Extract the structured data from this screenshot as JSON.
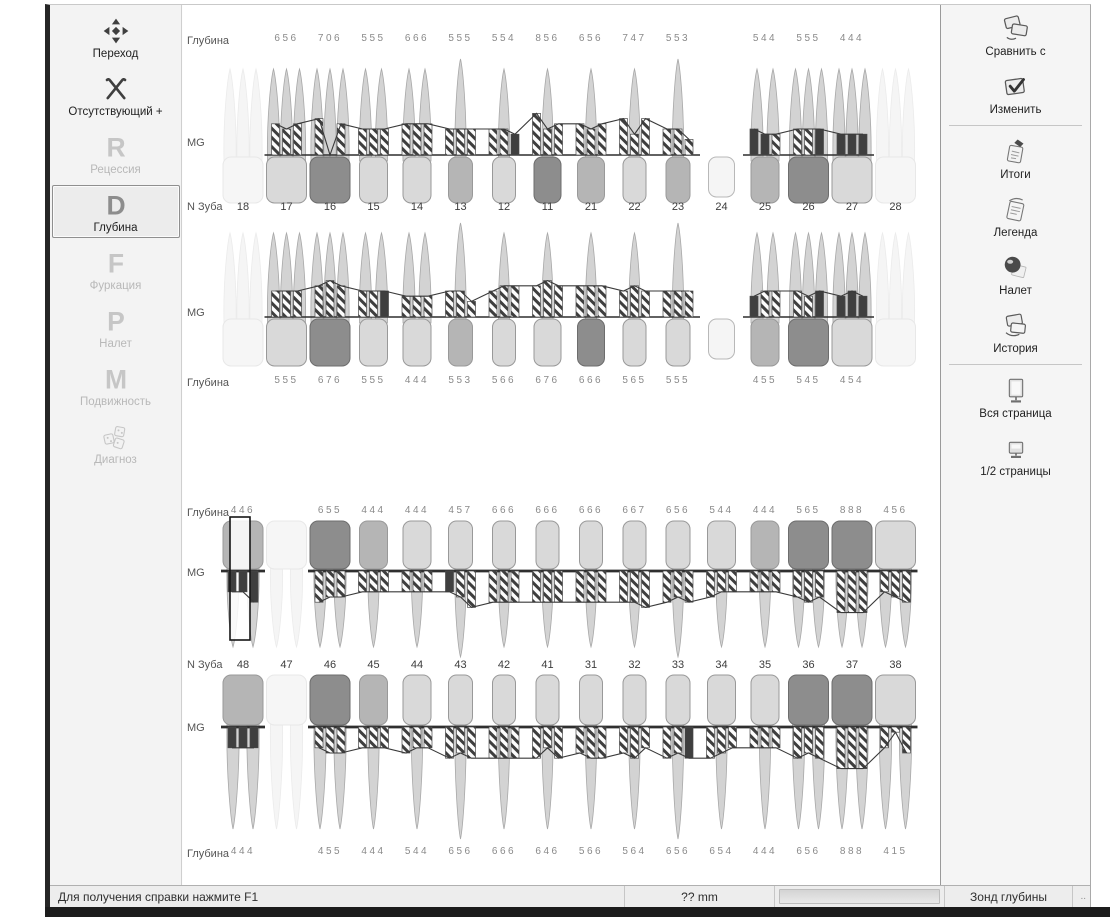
{
  "left_toolbar": {
    "items": [
      {
        "id": "transition",
        "label": "Переход",
        "icon": "move",
        "state": "normal"
      },
      {
        "id": "missing",
        "label": "Отсутствующий +",
        "icon": "x-mark",
        "state": "normal"
      },
      {
        "id": "recession",
        "label": "Рецессия",
        "icon": "letter-R",
        "state": "disabled"
      },
      {
        "id": "depth",
        "label": "Глубина",
        "icon": "letter-D",
        "state": "selected"
      },
      {
        "id": "furcation",
        "label": "Фуркация",
        "icon": "letter-F",
        "state": "disabled"
      },
      {
        "id": "plaque",
        "label": "Налет",
        "icon": "letter-P",
        "state": "disabled"
      },
      {
        "id": "mobility",
        "label": "Подвижность",
        "icon": "letter-M",
        "state": "disabled"
      },
      {
        "id": "diagnosis",
        "label": "Диагноз",
        "icon": "dice",
        "state": "disabled"
      }
    ]
  },
  "right_toolbar": {
    "groups": [
      [
        {
          "id": "compare",
          "label": "Сравнить с",
          "icon": "compare"
        },
        {
          "id": "change",
          "label": "Изменить",
          "icon": "edit"
        }
      ],
      [
        {
          "id": "totals",
          "label": "Итоги",
          "icon": "totals"
        },
        {
          "id": "legend",
          "label": "Легенда",
          "icon": "legend"
        },
        {
          "id": "plaque",
          "label": "Налет",
          "icon": "sphere"
        },
        {
          "id": "history",
          "label": "История",
          "icon": "history"
        }
      ],
      [
        {
          "id": "full-page",
          "label": "Вся страница",
          "icon": "full-page"
        },
        {
          "id": "half-page",
          "label": "1/2 страницы",
          "icon": "half-page"
        }
      ]
    ]
  },
  "status_bar": {
    "help": "Для получения справки нажмите F1",
    "measure": "?? mm",
    "probe": "Зонд глубины"
  },
  "chart_data": {
    "type": "periodontal-chart",
    "labels": {
      "depth": "Глубина",
      "mg": "MG",
      "tooth_number": "N Зуба"
    },
    "upper_teeth": [
      18,
      17,
      16,
      15,
      14,
      13,
      12,
      11,
      21,
      22,
      23,
      24,
      25,
      26,
      27,
      28
    ],
    "lower_teeth": [
      48,
      47,
      46,
      45,
      44,
      43,
      42,
      41,
      31,
      32,
      33,
      34,
      35,
      36,
      37,
      38
    ],
    "missing_teeth": [
      18,
      28,
      47
    ],
    "crown_only_teeth": [
      24
    ],
    "selection": {
      "row": "lower-buccal",
      "tooth": 48
    },
    "rows": [
      {
        "id": "upper-buccal",
        "arch": "upper",
        "depth_values": {
          "17": "656",
          "16": "706",
          "15": "555",
          "14": "666",
          "13": "555",
          "12": "554",
          "11": "856",
          "21": "656",
          "22": "747",
          "23": "553",
          "25": "544",
          "26": "555",
          "27": "444"
        },
        "dark_sites": {
          "12": [
            2
          ],
          "25": [
            0,
            1
          ],
          "26": [
            2
          ],
          "27": [
            0,
            1,
            2
          ]
        },
        "crown_shades": {
          "16": "dark",
          "13": "mid",
          "11": "dark",
          "21": "mid",
          "23": "mid",
          "25": "mid",
          "26": "dark"
        }
      },
      {
        "id": "upper-lingual",
        "arch": "upper",
        "depth_values": {
          "17": "555",
          "16": "676",
          "15": "555",
          "14": "444",
          "13": "553",
          "12": "566",
          "11": "676",
          "21": "666",
          "22": "565",
          "23": "555",
          "25": "455",
          "26": "545",
          "27": "454"
        },
        "dark_sites": {
          "15": [
            2
          ],
          "25": [
            0
          ],
          "26": [
            2
          ],
          "27": [
            0,
            1,
            2
          ]
        },
        "crown_shades": {
          "16": "dark",
          "13": "mid",
          "21": "dark",
          "25": "mid",
          "26": "dark"
        }
      },
      {
        "id": "lower-buccal",
        "arch": "lower",
        "depth_values": {
          "48": "446",
          "46": "655",
          "45": "444",
          "44": "444",
          "43": "457",
          "42": "666",
          "41": "666",
          "31": "666",
          "32": "667",
          "33": "656",
          "34": "544",
          "35": "444",
          "36": "565",
          "37": "888",
          "38": "456"
        },
        "dark_sites": {
          "48": [
            0,
            1,
            2
          ],
          "43": [
            0
          ]
        },
        "crown_shades": {
          "48": "mid",
          "46": "dark",
          "45": "mid",
          "35": "mid",
          "36": "dark",
          "37": "dark"
        }
      },
      {
        "id": "lower-lingual",
        "arch": "lower",
        "depth_values": {
          "48": "444",
          "46": "455",
          "45": "444",
          "44": "544",
          "43": "656",
          "42": "666",
          "41": "646",
          "31": "566",
          "32": "564",
          "33": "656",
          "34": "654",
          "35": "444",
          "36": "656",
          "37": "888",
          "38": "415"
        },
        "dark_sites": {
          "48": [
            0,
            1,
            2
          ],
          "33": [
            2
          ]
        },
        "crown_shades": {
          "48": "mid",
          "46": "dark",
          "45": "mid",
          "36": "dark",
          "37": "dark"
        }
      }
    ]
  }
}
